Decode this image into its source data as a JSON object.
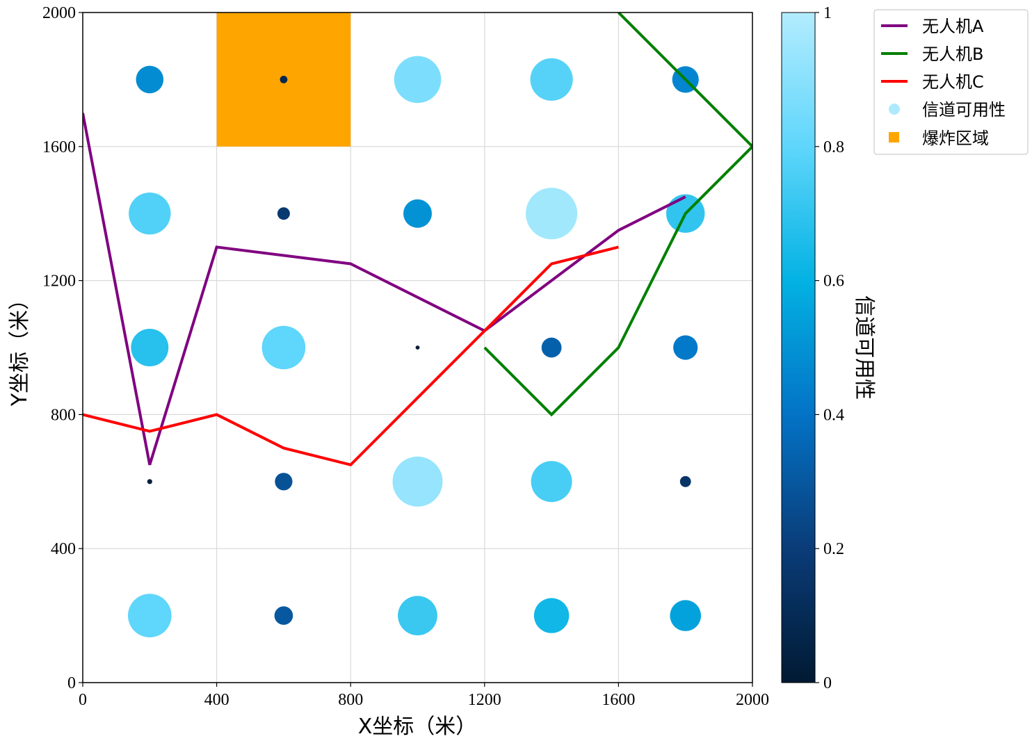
{
  "chart_data": {
    "type": "scatter",
    "xlabel": "X坐标（米）",
    "ylabel": "Y坐标（米）",
    "xlim": [
      0,
      2000
    ],
    "ylim": [
      0,
      2000
    ],
    "xticks": [
      "0",
      "400",
      "800",
      "1200",
      "1600",
      "2000"
    ],
    "yticks": [
      "0",
      "400",
      "800",
      "1200",
      "1600",
      "2000"
    ],
    "grid": true,
    "legend_position": "outside top-right",
    "colorbar": {
      "label": "信道可用性",
      "range": [
        0,
        1
      ],
      "ticks": [
        "0",
        "0.2",
        "0.4",
        "0.6",
        "0.8",
        "1"
      ],
      "colormap": "dark navy to light cyan",
      "stops": [
        "#011a33",
        "#0a3c78",
        "#0373c6",
        "#03b2e3",
        "#5fd6fb",
        "#b3ecfe"
      ]
    },
    "explosion_zone": {
      "label": "爆炸区域",
      "color": "#ffa500",
      "x_range": [
        400,
        800
      ],
      "y_range": [
        1600,
        2000
      ]
    },
    "channel_points": {
      "label": "信道可用性",
      "legend_color": "#aeeafd",
      "points": [
        {
          "x": 200,
          "y": 200,
          "v": 0.8
        },
        {
          "x": 600,
          "y": 200,
          "v": 0.3
        },
        {
          "x": 1000,
          "y": 200,
          "v": 0.72
        },
        {
          "x": 1400,
          "y": 200,
          "v": 0.63
        },
        {
          "x": 1800,
          "y": 200,
          "v": 0.55
        },
        {
          "x": 200,
          "y": 600,
          "v": 0.03
        },
        {
          "x": 600,
          "y": 600,
          "v": 0.28
        },
        {
          "x": 1000,
          "y": 600,
          "v": 0.93
        },
        {
          "x": 1400,
          "y": 600,
          "v": 0.75
        },
        {
          "x": 1800,
          "y": 600,
          "v": 0.15
        },
        {
          "x": 200,
          "y": 1000,
          "v": 0.68
        },
        {
          "x": 600,
          "y": 1000,
          "v": 0.8
        },
        {
          "x": 1000,
          "y": 1000,
          "v": 0.01
        },
        {
          "x": 1400,
          "y": 1000,
          "v": 0.33
        },
        {
          "x": 1800,
          "y": 1000,
          "v": 0.42
        },
        {
          "x": 200,
          "y": 1400,
          "v": 0.77
        },
        {
          "x": 600,
          "y": 1400,
          "v": 0.18
        },
        {
          "x": 1000,
          "y": 1400,
          "v": 0.5
        },
        {
          "x": 1400,
          "y": 1400,
          "v": 0.96
        },
        {
          "x": 1800,
          "y": 1400,
          "v": 0.7
        },
        {
          "x": 200,
          "y": 1800,
          "v": 0.48
        },
        {
          "x": 600,
          "y": 1800,
          "v": 0.08
        },
        {
          "x": 1000,
          "y": 1800,
          "v": 0.87
        },
        {
          "x": 1400,
          "y": 1800,
          "v": 0.78
        },
        {
          "x": 1800,
          "y": 1800,
          "v": 0.46
        }
      ]
    },
    "series": [
      {
        "name": "无人机A",
        "color": "#800080",
        "x": [
          0,
          200,
          400,
          800,
          1200,
          1600,
          1800
        ],
        "y": [
          1700,
          650,
          1300,
          1250,
          1050,
          1350,
          1450
        ]
      },
      {
        "name": "无人机B",
        "color": "#008000",
        "x": [
          1200,
          1400,
          1600,
          1800,
          2000,
          1600
        ],
        "y": [
          1000,
          800,
          1000,
          1400,
          1600,
          2000
        ]
      },
      {
        "name": "无人机C",
        "color": "#ff0000",
        "x": [
          0,
          200,
          400,
          600,
          800,
          1200,
          1400,
          1600
        ],
        "y": [
          800,
          750,
          800,
          700,
          650,
          1050,
          1250,
          1300
        ]
      }
    ]
  }
}
